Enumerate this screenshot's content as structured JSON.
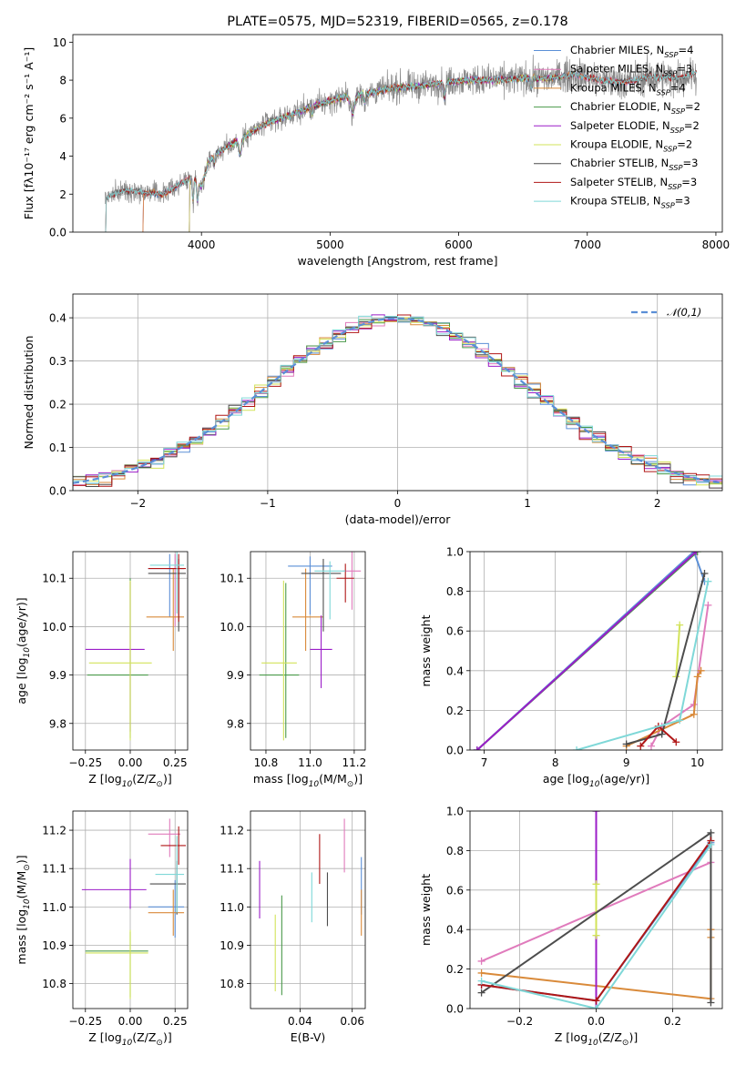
{
  "colors": {
    "chabrier_miles": "#5b8fd6",
    "salpeter_miles": "#e07bbc",
    "kroupa_miles": "#d98a3a",
    "chabrier_elodie": "#4a9a4a",
    "salpeter_elodie": "#9b1dc8",
    "kroupa_elodie": "#d2e35a",
    "chabrier_stelib": "#4d4d4d",
    "salpeter_stelib": "#b01616",
    "kroupa_stelib": "#7fd8d8",
    "data": "#888888"
  },
  "chart_data": [
    {
      "id": "spectrum",
      "type": "line",
      "title": "PLATE=0575, MJD=52319, FIBERID=0565, z=0.178",
      "xlabel": "wavelength [Angstrom, rest frame]",
      "ylabel": "Flux [fλ10⁻¹⁷ erg cm⁻² s⁻¹ A⁻¹]",
      "xlim": [
        3000,
        8050
      ],
      "ylim": [
        0,
        10.4
      ],
      "xticks": [
        4000,
        5000,
        6000,
        7000,
        8000
      ],
      "yticks": [
        0,
        2,
        4,
        6,
        8,
        10
      ],
      "grid": false,
      "legend_position": "right",
      "continuum_points": {
        "x": [
          3250,
          3400,
          3550,
          3700,
          3850,
          3950,
          4050,
          4200,
          4350,
          4500,
          4700,
          4900,
          5100,
          5300,
          5500,
          5700,
          5900,
          6100,
          6300,
          6500,
          6700,
          6900,
          7100,
          7300,
          7500,
          7700,
          7850
        ],
        "y": [
          1.8,
          2.2,
          2.1,
          2.0,
          2.6,
          3.0,
          3.8,
          4.5,
          5.1,
          5.7,
          6.2,
          6.7,
          7.1,
          7.3,
          7.6,
          7.7,
          7.9,
          8.0,
          8.0,
          8.1,
          8.1,
          8.3,
          8.0,
          7.9,
          8.2,
          8.1,
          8.4
        ]
      },
      "series": [
        {
          "name": "Chabrier MILES, N$_{SSP}$=4",
          "key": "chabrier_miles"
        },
        {
          "name": "Salpeter MILES, N$_{SSP}$=3",
          "key": "salpeter_miles"
        },
        {
          "name": "Kroupa MILES, N$_{SSP}$=4",
          "key": "kroupa_miles"
        },
        {
          "name": "Chabrier ELODIE, N$_{SSP}$=2",
          "key": "chabrier_elodie"
        },
        {
          "name": "Salpeter ELODIE, N$_{SSP}$=2",
          "key": "salpeter_elodie"
        },
        {
          "name": "Kroupa ELODIE, N$_{SSP}$=2",
          "key": "kroupa_elodie"
        },
        {
          "name": "Chabrier STELIB, N$_{SSP}$=3",
          "key": "chabrier_stelib"
        },
        {
          "name": "Salpeter STELIB, N$_{SSP}$=3",
          "key": "salpeter_stelib"
        },
        {
          "name": "Kroupa STELIB, N$_{SSP}$=3",
          "key": "kroupa_stelib"
        }
      ],
      "model_ranges": {
        "chabrier_miles": [
          3540,
          7400
        ],
        "salpeter_miles": [
          3540,
          7400
        ],
        "kroupa_miles": [
          3540,
          7400
        ],
        "chabrier_elodie": [
          3900,
          6800
        ],
        "salpeter_elodie": [
          3900,
          6800
        ],
        "kroupa_elodie": [
          3900,
          6800
        ],
        "chabrier_stelib": [
          3250,
          7850
        ],
        "salpeter_stelib": [
          3250,
          7850
        ],
        "kroupa_stelib": [
          3250,
          7850
        ]
      }
    },
    {
      "id": "residuals",
      "type": "bar",
      "xlabel": "(data-model)/error",
      "ylabel": "Normed distribution",
      "xlim": [
        -2.5,
        2.5
      ],
      "ylim": [
        0,
        0.455
      ],
      "xticks": [
        -2,
        -1,
        0,
        1,
        2
      ],
      "yticks": [
        0.0,
        0.1,
        0.2,
        0.3,
        0.4
      ],
      "grid": true,
      "legend_position": "top-right",
      "bins": {
        "start": -2.5,
        "width": 0.1,
        "count": 50
      },
      "normal": {
        "name": "$\\mathcal{N}(0,1)$",
        "mean": 0,
        "sd": 1
      },
      "series_keys": [
        "chabrier_miles",
        "salpeter_miles",
        "kroupa_miles",
        "chabrier_elodie",
        "salpeter_elodie",
        "kroupa_elodie",
        "chabrier_stelib",
        "salpeter_stelib",
        "kroupa_stelib"
      ]
    },
    {
      "id": "z-age",
      "type": "scatter",
      "xlabel": "Z [log$_{10}$(Z/Z$_\\odot$)]",
      "ylabel": "age  [log$_{10}$(age/yr)]",
      "xlim": [
        -0.32,
        0.32
      ],
      "ylim": [
        9.745,
        10.155
      ],
      "xticks": [
        -0.25,
        0.0,
        0.25
      ],
      "yticks": [
        9.8,
        9.9,
        10.0,
        10.1
      ],
      "grid": true,
      "points": [
        {
          "key": "chabrier_miles",
          "x": 0.22,
          "y": 10.12,
          "xerr": [
            0.12,
            0.08
          ],
          "yerr": [
            0.1,
            0.03
          ]
        },
        {
          "key": "salpeter_miles",
          "x": 0.25,
          "y": 10.12,
          "xerr": [
            0.05,
            0.05
          ],
          "yerr": [
            0.12,
            0.03
          ]
        },
        {
          "key": "kroupa_miles",
          "x": 0.24,
          "y": 10.02,
          "xerr": [
            0.15,
            0.06
          ],
          "yerr": [
            0.07,
            0.1
          ]
        },
        {
          "key": "chabrier_elodie",
          "x": 0.0,
          "y": 9.9,
          "xerr": [
            0.24,
            0.1
          ],
          "yerr": [
            0.13,
            0.2
          ]
        },
        {
          "key": "salpeter_elodie",
          "x": 0.0,
          "y": 9.953,
          "xerr": [
            0.25,
            0.08
          ],
          "yerr": [
            0.17,
            0.14
          ]
        },
        {
          "key": "kroupa_elodie",
          "x": 0.0,
          "y": 9.925,
          "xerr": [
            0.23,
            0.12
          ],
          "yerr": [
            0.16,
            0.17
          ]
        },
        {
          "key": "chabrier_stelib",
          "x": 0.27,
          "y": 10.11,
          "xerr": [
            0.17,
            0.04
          ],
          "yerr": [
            0.12,
            0.03
          ]
        },
        {
          "key": "salpeter_stelib",
          "x": 0.27,
          "y": 10.12,
          "xerr": [
            0.17,
            0.04
          ],
          "yerr": [
            0.11,
            0.03
          ]
        },
        {
          "key": "kroupa_stelib",
          "x": 0.26,
          "y": 10.127,
          "xerr": [
            0.15,
            0.04
          ],
          "yerr": [
            0.1,
            0.03
          ]
        }
      ]
    },
    {
      "id": "mass-age",
      "type": "scatter",
      "xlabel": "mass [log$_{10}$(M/M$_\\odot$)]",
      "ylabel": "",
      "xlim": [
        10.73,
        11.25
      ],
      "ylim": [
        9.745,
        10.155
      ],
      "xticks": [
        10.8,
        11.0,
        11.2
      ],
      "yticks": [
        9.8,
        9.9,
        10.0,
        10.1
      ],
      "grid": true,
      "points": [
        {
          "key": "chabrier_miles",
          "x": 11.0,
          "y": 10.125,
          "xerr": [
            0.1,
            0.1
          ],
          "yerr": [
            0.1,
            0.02
          ]
        },
        {
          "key": "salpeter_miles",
          "x": 11.19,
          "y": 10.115,
          "xerr": [
            0.04,
            0.04
          ],
          "yerr": [
            0.08,
            0.04
          ]
        },
        {
          "key": "kroupa_miles",
          "x": 10.98,
          "y": 10.02,
          "xerr": [
            0.06,
            0.08
          ],
          "yerr": [
            0.07,
            0.1
          ]
        },
        {
          "key": "chabrier_elodie",
          "x": 10.89,
          "y": 9.9,
          "xerr": [
            0.12,
            0.06
          ],
          "yerr": [
            0.13,
            0.19
          ]
        },
        {
          "key": "salpeter_elodie",
          "x": 11.05,
          "y": 9.953,
          "xerr": [
            0.05,
            0.05
          ],
          "yerr": [
            0.08,
            0.07
          ]
        },
        {
          "key": "kroupa_elodie",
          "x": 10.88,
          "y": 9.925,
          "xerr": [
            0.1,
            0.06
          ],
          "yerr": [
            0.16,
            0.17
          ]
        },
        {
          "key": "chabrier_stelib",
          "x": 11.06,
          "y": 10.11,
          "xerr": [
            0.1,
            0.08
          ],
          "yerr": [
            0.12,
            0.03
          ]
        },
        {
          "key": "salpeter_stelib",
          "x": 11.16,
          "y": 10.1,
          "xerr": [
            0.04,
            0.04
          ],
          "yerr": [
            0.05,
            0.03
          ]
        },
        {
          "key": "kroupa_stelib",
          "x": 11.09,
          "y": 10.115,
          "xerr": [
            0.07,
            0.07
          ],
          "yerr": [
            0.1,
            0.02
          ]
        }
      ]
    },
    {
      "id": "age-weight",
      "type": "line",
      "xlabel": "age  [log$_{10}$(age/yr)]",
      "ylabel": "mass weight",
      "xlim": [
        6.8,
        10.35
      ],
      "ylim": [
        0,
        1.0
      ],
      "xticks": [
        7,
        8,
        9,
        10
      ],
      "yticks": [
        0.0,
        0.2,
        0.4,
        0.6,
        0.8,
        1.0
      ],
      "grid": true,
      "series": [
        {
          "key": "chabrier_miles",
          "x": [
            6.9,
            9.95,
            10.1
          ],
          "y": [
            0.0,
            1.0,
            0.85
          ]
        },
        {
          "key": "salpeter_miles",
          "x": [
            9.35,
            9.5,
            9.95,
            10.15
          ],
          "y": [
            0.02,
            0.12,
            0.23,
            0.73
          ]
        },
        {
          "key": "kroupa_miles",
          "x": [
            9.0,
            9.95,
            10.0,
            10.05
          ],
          "y": [
            0.02,
            0.18,
            0.37,
            0.4
          ]
        },
        {
          "key": "chabrier_elodie",
          "x": [
            6.9,
            10.0
          ],
          "y": [
            0.0,
            1.0
          ]
        },
        {
          "key": "salpeter_elodie",
          "x": [
            6.9,
            9.98
          ],
          "y": [
            0.0,
            1.0
          ]
        },
        {
          "key": "kroupa_elodie",
          "x": [
            9.7,
            9.75
          ],
          "y": [
            0.37,
            0.63
          ]
        },
        {
          "key": "chabrier_stelib",
          "x": [
            9.0,
            9.5,
            10.1
          ],
          "y": [
            0.03,
            0.08,
            0.89
          ]
        },
        {
          "key": "salpeter_stelib",
          "x": [
            9.2,
            9.45,
            9.7
          ],
          "y": [
            0.02,
            0.12,
            0.04
          ]
        },
        {
          "key": "kroupa_stelib",
          "x": [
            8.3,
            9.75,
            10.15
          ],
          "y": [
            0.0,
            0.15,
            0.85
          ]
        }
      ]
    },
    {
      "id": "z-mass",
      "type": "scatter",
      "xlabel": "Z [log$_{10}$(Z/Z$_\\odot$)]",
      "ylabel": "mass [log$_{10}$(M/M$_\\odot$)]",
      "xlim": [
        -0.32,
        0.32
      ],
      "ylim": [
        10.735,
        11.25
      ],
      "xticks": [
        -0.25,
        0.0,
        0.25
      ],
      "yticks": [
        10.8,
        10.9,
        11.0,
        11.1,
        11.2
      ],
      "grid": true,
      "points": [
        {
          "key": "chabrier_miles",
          "x": 0.25,
          "y": 11.0,
          "xerr": [
            0.15,
            0.05
          ],
          "yerr": [
            0.08,
            0.07
          ]
        },
        {
          "key": "salpeter_miles",
          "x": 0.22,
          "y": 11.19,
          "xerr": [
            0.12,
            0.06
          ],
          "yerr": [
            0.06,
            0.04
          ]
        },
        {
          "key": "kroupa_miles",
          "x": 0.24,
          "y": 10.985,
          "xerr": [
            0.14,
            0.06
          ],
          "yerr": [
            0.06,
            0.06
          ]
        },
        {
          "key": "chabrier_elodie",
          "x": 0.0,
          "y": 10.885,
          "xerr": [
            0.25,
            0.1
          ],
          "yerr": [
            0.12,
            0.05
          ]
        },
        {
          "key": "salpeter_elodie",
          "x": 0.0,
          "y": 11.045,
          "xerr": [
            0.27,
            0.09
          ],
          "yerr": [
            0.05,
            0.08
          ]
        },
        {
          "key": "kroupa_elodie",
          "x": 0.0,
          "y": 10.88,
          "xerr": [
            0.25,
            0.1
          ],
          "yerr": [
            0.12,
            0.06
          ]
        },
        {
          "key": "chabrier_stelib",
          "x": 0.26,
          "y": 11.06,
          "xerr": [
            0.15,
            0.05
          ],
          "yerr": [
            0.08,
            0.06
          ]
        },
        {
          "key": "salpeter_stelib",
          "x": 0.27,
          "y": 11.16,
          "xerr": [
            0.1,
            0.04
          ],
          "yerr": [
            0.05,
            0.05
          ]
        },
        {
          "key": "kroupa_stelib",
          "x": 0.26,
          "y": 11.085,
          "xerr": [
            0.12,
            0.04
          ],
          "yerr": [
            0.1,
            0.1
          ]
        }
      ]
    },
    {
      "id": "ebv-mass",
      "type": "scatter",
      "xlabel": "E(B-V)",
      "ylabel": "",
      "xlim": [
        0.021,
        0.065
      ],
      "ylim": [
        10.735,
        11.25
      ],
      "xticks": [
        0.04,
        0.06
      ],
      "yticks": [
        10.8,
        10.9,
        11.0,
        11.1,
        11.2
      ],
      "grid": true,
      "points": [
        {
          "key": "chabrier_miles",
          "x": 0.0635,
          "y": 11.05,
          "xerr": [
            0,
            0
          ],
          "yerr": [
            0.07,
            0.08
          ]
        },
        {
          "key": "salpeter_miles",
          "x": 0.057,
          "y": 11.16,
          "xerr": [
            0,
            0
          ],
          "yerr": [
            0.07,
            0.07
          ]
        },
        {
          "key": "kroupa_miles",
          "x": 0.0635,
          "y": 10.985,
          "xerr": [
            0,
            0
          ],
          "yerr": [
            0.06,
            0.06
          ]
        },
        {
          "key": "chabrier_elodie",
          "x": 0.033,
          "y": 10.89,
          "xerr": [
            0,
            0
          ],
          "yerr": [
            0.12,
            0.14
          ]
        },
        {
          "key": "salpeter_elodie",
          "x": 0.0245,
          "y": 11.05,
          "xerr": [
            0,
            0
          ],
          "yerr": [
            0.08,
            0.07
          ]
        },
        {
          "key": "kroupa_elodie",
          "x": 0.0305,
          "y": 10.88,
          "xerr": [
            0,
            0
          ],
          "yerr": [
            0.1,
            0.1
          ]
        },
        {
          "key": "chabrier_stelib",
          "x": 0.0505,
          "y": 11.02,
          "xerr": [
            0,
            0
          ],
          "yerr": [
            0.07,
            0.07
          ]
        },
        {
          "key": "salpeter_stelib",
          "x": 0.0475,
          "y": 11.12,
          "xerr": [
            0,
            0
          ],
          "yerr": [
            0.06,
            0.07
          ]
        },
        {
          "key": "kroupa_stelib",
          "x": 0.0445,
          "y": 11.03,
          "xerr": [
            0,
            0
          ],
          "yerr": [
            0.07,
            0.06
          ]
        }
      ]
    },
    {
      "id": "z-weight",
      "type": "line",
      "xlabel": "Z [log$_{10}$(Z/Z$_\\odot$)]",
      "ylabel": "mass weight",
      "xlim": [
        -0.33,
        0.33
      ],
      "ylim": [
        0,
        1.0
      ],
      "xticks": [
        -0.2,
        0.0,
        0.2
      ],
      "yticks": [
        0.0,
        0.2,
        0.4,
        0.6,
        0.8,
        1.0
      ],
      "grid": true,
      "series": [
        {
          "key": "chabrier_miles",
          "x": [
            -0.3,
            0.0,
            0.3
          ],
          "y": [
            0.12,
            0.04,
            0.84
          ]
        },
        {
          "key": "salpeter_miles",
          "x": [
            -0.3,
            0.3
          ],
          "y": [
            0.24,
            0.74
          ]
        },
        {
          "key": "kroupa_miles",
          "x": [
            -0.3,
            0.3,
            0.3,
            0.3
          ],
          "y": [
            0.18,
            0.05,
            0.36,
            0.4
          ]
        },
        {
          "key": "chabrier_elodie",
          "x": [
            0.0,
            0.0
          ],
          "y": [
            0.0,
            1.0
          ]
        },
        {
          "key": "salpeter_elodie",
          "x": [
            0.0,
            0.0
          ],
          "y": [
            0.0,
            1.0
          ]
        },
        {
          "key": "kroupa_elodie",
          "x": [
            0.0,
            0.0
          ],
          "y": [
            0.37,
            0.63
          ]
        },
        {
          "key": "chabrier_stelib",
          "x": [
            -0.3,
            0.3,
            0.3
          ],
          "y": [
            0.08,
            0.89,
            0.03
          ]
        },
        {
          "key": "salpeter_stelib",
          "x": [
            -0.3,
            0.0,
            0.3
          ],
          "y": [
            0.12,
            0.04,
            0.85
          ]
        },
        {
          "key": "kroupa_stelib",
          "x": [
            -0.3,
            0.0,
            0.3
          ],
          "y": [
            0.14,
            0.0,
            0.83
          ]
        }
      ]
    }
  ]
}
